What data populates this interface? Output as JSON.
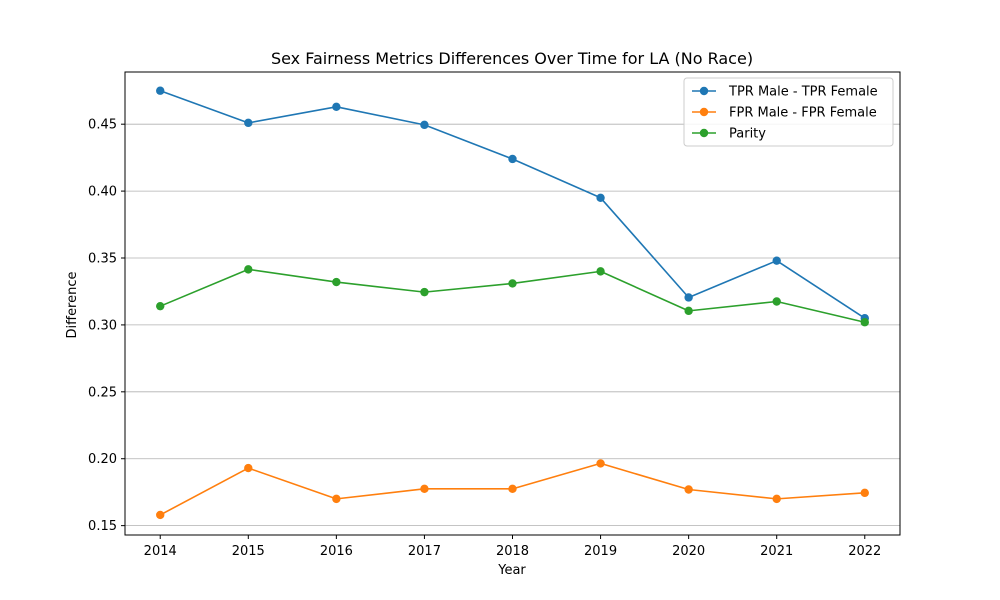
{
  "chart_data": {
    "type": "line",
    "title": "Sex Fairness Metrics Differences Over Time for LA (No Race)",
    "xlabel": "Year",
    "ylabel": "Difference",
    "x": [
      "2014",
      "2015",
      "2016",
      "2017",
      "2018",
      "2019",
      "2020",
      "2021",
      "2022"
    ],
    "xlim": [
      2013.6,
      2022.4
    ],
    "ylim": [
      0.143,
      0.489
    ],
    "yticks": [
      "0.15",
      "0.20",
      "0.25",
      "0.30",
      "0.35",
      "0.40",
      "0.45"
    ],
    "grid": "horizontal",
    "legend_position": "top-right",
    "series": [
      {
        "name": "TPR Male - TPR Female",
        "color": "#1f77b4",
        "values": [
          0.475,
          0.451,
          0.463,
          0.4495,
          0.424,
          0.395,
          0.3205,
          0.348,
          0.305
        ]
      },
      {
        "name": "FPR Male - FPR Female",
        "color": "#ff7f0e",
        "values": [
          0.158,
          0.193,
          0.17,
          0.1775,
          0.1775,
          0.1965,
          0.177,
          0.17,
          0.1745
        ]
      },
      {
        "name": "Parity",
        "color": "#2ca02c",
        "values": [
          0.314,
          0.3415,
          0.332,
          0.3245,
          0.331,
          0.34,
          0.3105,
          0.3175,
          0.302
        ]
      }
    ]
  }
}
